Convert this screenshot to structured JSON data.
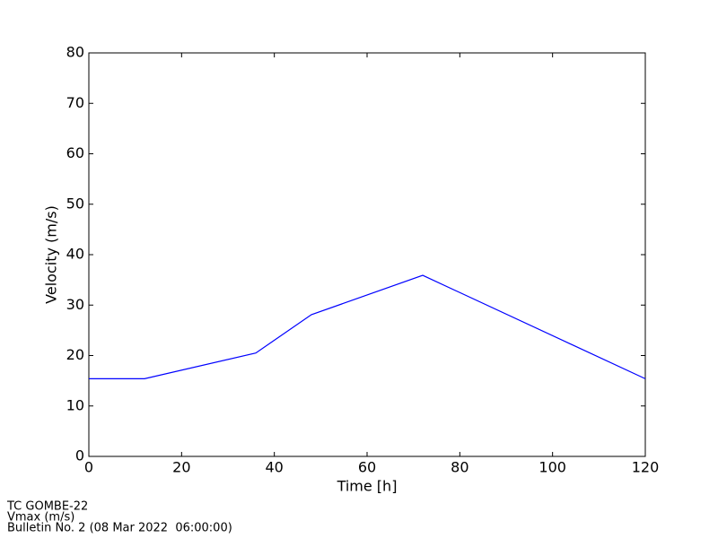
{
  "chart_data": {
    "type": "line",
    "x_label": "Time [h]",
    "y_label": "Velocity (m/s)",
    "x": [
      0,
      12,
      36,
      48,
      72,
      120
    ],
    "series": [
      {
        "color": "#0000ff",
        "values": [
          15.4,
          15.4,
          20.5,
          28.1,
          35.9,
          15.4
        ]
      }
    ],
    "xlim": [
      0,
      120
    ],
    "xticks": [
      0,
      20,
      40,
      60,
      80,
      100,
      120
    ],
    "ylim": [
      0,
      80
    ],
    "yticks": [
      0,
      10,
      20,
      30,
      40,
      50,
      60,
      70,
      80
    ],
    "footer": [
      "TC GOMBE-22",
      "Vmax (m/s)",
      "Bulletin No. 2 (08 Mar 2022  06:00:00)"
    ]
  }
}
